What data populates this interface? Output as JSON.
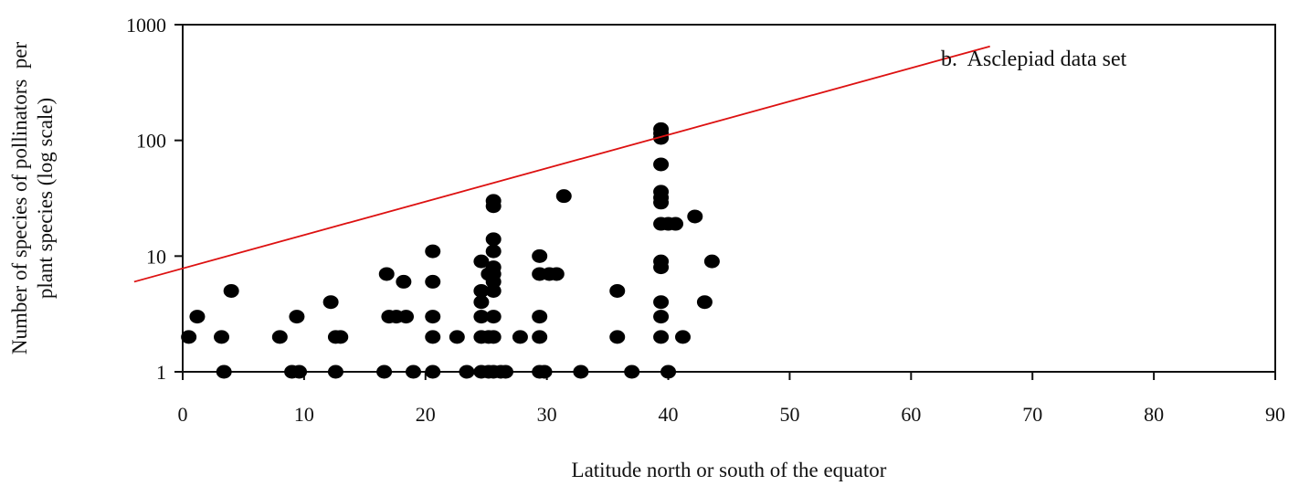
{
  "chart_data": {
    "type": "scatter",
    "title": "",
    "annotation": "b.  Asclepiad data set",
    "xlabel": "Latitude north or south of the equator",
    "ylabel_lines": [
      "Number of species of pollinators  per",
      "plant species (log scale)"
    ],
    "xlim": [
      0,
      90
    ],
    "ylim": [
      1,
      1000
    ],
    "yscale": "log",
    "x_ticks": [
      0,
      10,
      20,
      30,
      40,
      50,
      60,
      70,
      80,
      90
    ],
    "y_ticks": [
      1,
      10,
      100,
      1000
    ],
    "x_tick_labels": [
      "0",
      "10",
      "20",
      "30",
      "40",
      "50",
      "60",
      "70",
      "80",
      "90"
    ],
    "y_tick_labels": [
      "1",
      "10",
      "100",
      "1000"
    ],
    "grid": false,
    "marker_color": "#000000",
    "trend_line": {
      "color": "#dd1111",
      "start": [
        -4,
        6
      ],
      "end": [
        66.5,
        650
      ]
    },
    "points": [
      [
        0.5,
        2
      ],
      [
        1.2,
        3
      ],
      [
        3.2,
        2
      ],
      [
        3.4,
        1
      ],
      [
        4,
        5
      ],
      [
        8,
        2
      ],
      [
        9,
        1
      ],
      [
        9.6,
        1
      ],
      [
        9.4,
        3
      ],
      [
        12.2,
        4
      ],
      [
        12.6,
        2
      ],
      [
        12.6,
        1
      ],
      [
        13,
        2
      ],
      [
        16.6,
        1
      ],
      [
        16.8,
        7
      ],
      [
        17,
        3
      ],
      [
        17.6,
        3
      ],
      [
        18.2,
        6
      ],
      [
        18.4,
        3
      ],
      [
        19,
        1
      ],
      [
        20.6,
        11
      ],
      [
        20.6,
        6
      ],
      [
        20.6,
        3
      ],
      [
        20.6,
        2
      ],
      [
        20.6,
        1
      ],
      [
        22.6,
        2
      ],
      [
        23.4,
        1
      ],
      [
        24.6,
        9
      ],
      [
        24.6,
        5
      ],
      [
        24.6,
        4
      ],
      [
        24.6,
        3
      ],
      [
        24.6,
        2
      ],
      [
        24.6,
        1
      ],
      [
        25.2,
        7
      ],
      [
        25.2,
        2
      ],
      [
        25.2,
        1
      ],
      [
        25.6,
        30
      ],
      [
        25.6,
        27
      ],
      [
        25.6,
        14
      ],
      [
        25.6,
        11
      ],
      [
        25.6,
        8
      ],
      [
        25.6,
        7
      ],
      [
        25.6,
        6
      ],
      [
        25.6,
        5
      ],
      [
        25.6,
        3
      ],
      [
        25.6,
        2
      ],
      [
        25.6,
        1
      ],
      [
        26.2,
        1
      ],
      [
        26.6,
        1
      ],
      [
        27.8,
        2
      ],
      [
        29.4,
        10
      ],
      [
        29.4,
        7
      ],
      [
        29.4,
        3
      ],
      [
        29.4,
        2
      ],
      [
        29.4,
        1
      ],
      [
        29.8,
        1
      ],
      [
        30.2,
        7
      ],
      [
        30.8,
        7
      ],
      [
        31.4,
        33
      ],
      [
        32.8,
        1
      ],
      [
        35.8,
        5
      ],
      [
        35.8,
        2
      ],
      [
        37,
        1
      ],
      [
        39.4,
        125
      ],
      [
        39.4,
        115
      ],
      [
        39.4,
        105
      ],
      [
        39.4,
        62
      ],
      [
        39.4,
        36
      ],
      [
        39.4,
        32
      ],
      [
        39.4,
        29
      ],
      [
        39.4,
        19
      ],
      [
        39.4,
        9
      ],
      [
        39.4,
        8
      ],
      [
        39.4,
        4
      ],
      [
        39.4,
        3
      ],
      [
        39.4,
        2
      ],
      [
        40,
        19
      ],
      [
        40,
        1
      ],
      [
        40.6,
        19
      ],
      [
        41.2,
        2
      ],
      [
        42.2,
        22
      ],
      [
        43,
        4
      ],
      [
        43.6,
        9
      ]
    ]
  }
}
